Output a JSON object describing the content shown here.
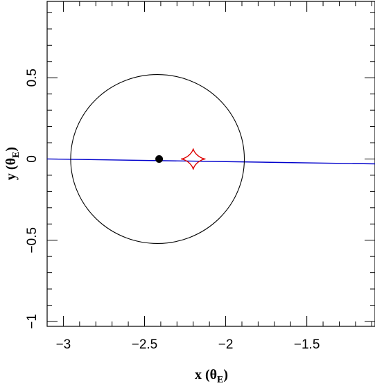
{
  "chart_data": {
    "type": "scatter",
    "xlabel": {
      "main": "x (θ",
      "sub": "E",
      "close": ")"
    },
    "ylabel": {
      "main": "y (θ",
      "sub": "E",
      "close": ")"
    },
    "xlim": [
      -3.1,
      -1.08
    ],
    "ylim": [
      -1.03,
      0.97
    ],
    "x_ticks": [
      {
        "value": -3,
        "label": "−3"
      },
      {
        "value": -2.5,
        "label": "−2.5"
      },
      {
        "value": -2,
        "label": "−2"
      },
      {
        "value": -1.5,
        "label": "−1.5"
      }
    ],
    "y_ticks": [
      {
        "value": -1,
        "label": "−1"
      },
      {
        "value": -0.5,
        "label": "−0.5"
      },
      {
        "value": 0,
        "label": "0"
      },
      {
        "value": 0.5,
        "label": "0.5"
      }
    ],
    "x_minor_step": 0.1,
    "y_minor_step": 0.1,
    "lens_position": {
      "x": -2.41,
      "y": 0.0
    },
    "critical_curve": {
      "center_x": -2.42,
      "center_y": 0.0,
      "radius_x": 0.535,
      "radius_y": 0.52,
      "color": "#000000"
    },
    "caustic": {
      "center_x": -2.2,
      "center_y": 0.0,
      "half_width": 0.075,
      "half_height": 0.065,
      "color": "#dd0000"
    },
    "source_trajectory": {
      "points": [
        [
          -3.1,
          0.0
        ],
        [
          -1.08,
          -0.03
        ]
      ],
      "color": "#0000cc"
    }
  }
}
